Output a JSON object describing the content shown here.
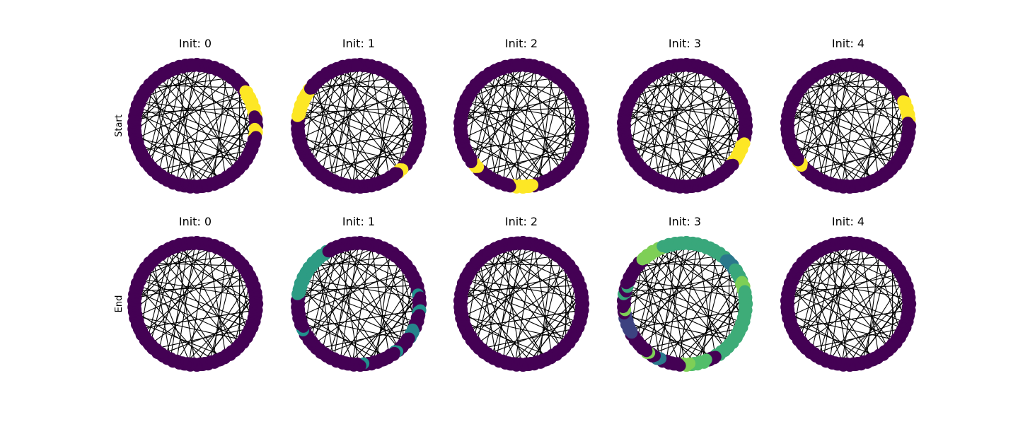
{
  "rows": [
    {
      "label": "Start",
      "panels": [
        {
          "title": "Init: 0",
          "segments": [
            {
              "from": 0.95,
              "to": 1.4,
              "value": 1
            },
            {
              "from": 1.6,
              "to": 1.75,
              "value": 1
            }
          ]
        },
        {
          "title": "Init: 1",
          "segments": [
            {
              "from": 4.85,
              "to": 5.35,
              "value": 1
            },
            {
              "from": 2.35,
              "to": 2.45,
              "value": 1
            }
          ]
        },
        {
          "title": "Init: 2",
          "segments": [
            {
              "from": 3.95,
              "to": 4.08,
              "value": 1
            },
            {
              "from": 2.95,
              "to": 3.3,
              "value": 1
            }
          ]
        },
        {
          "title": "Init: 3",
          "segments": [
            {
              "from": 1.85,
              "to": 2.25,
              "value": 1
            }
          ]
        },
        {
          "title": "Init: 4",
          "segments": [
            {
              "from": 4.0,
              "to": 4.1,
              "value": 1
            },
            {
              "from": 1.15,
              "to": 1.5,
              "value": 1
            }
          ]
        }
      ]
    },
    {
      "label": "End",
      "panels": [
        {
          "title": "Init: 0",
          "segments": []
        },
        {
          "title": "Init: 1",
          "segments": [
            {
              "from": 4.85,
              "to": 5.75,
              "value": 0.55
            },
            {
              "from": 4.25,
              "to": 4.3,
              "value": 0.5
            },
            {
              "from": 3.05,
              "to": 3.1,
              "value": 0.5
            },
            {
              "from": 2.0,
              "to": 2.15,
              "value": 0.45
            },
            {
              "from": 1.65,
              "to": 1.75,
              "value": 0.5
            },
            {
              "from": 1.4,
              "to": 1.45,
              "value": 0.5
            },
            {
              "from": 2.45,
              "to": 2.5,
              "value": 0.5
            }
          ]
        },
        {
          "title": "Init: 2",
          "segments": []
        },
        {
          "title": "Init: 3",
          "segments": [
            {
              "from": 4.2,
              "to": 4.55,
              "value": 0.2
            },
            {
              "from": 5.5,
              "to": 5.9,
              "value": 0.8
            },
            {
              "from": 5.9,
              "to": 6.283,
              "value": 0.6
            },
            {
              "from": 0,
              "to": 0.75,
              "value": 0.6
            },
            {
              "from": 0.75,
              "to": 0.95,
              "value": 0.4
            },
            {
              "from": 0.95,
              "to": 1.2,
              "value": 0.6
            },
            {
              "from": 1.2,
              "to": 1.35,
              "value": 0.8
            },
            {
              "from": 1.35,
              "to": 2.6,
              "value": 0.62
            },
            {
              "from": 2.75,
              "to": 3.05,
              "value": 0.7
            },
            {
              "from": 3.05,
              "to": 3.2,
              "value": 0.8
            },
            {
              "from": 3.55,
              "to": 3.65,
              "value": 0.4
            },
            {
              "from": 3.75,
              "to": 3.8,
              "value": 0.8
            },
            {
              "from": 4.6,
              "to": 4.65,
              "value": 0.8
            },
            {
              "from": 4.85,
              "to": 4.9,
              "value": 0.6
            },
            {
              "from": 5.0,
              "to": 5.05,
              "value": 0.6
            }
          ]
        },
        {
          "title": "Init: 4",
          "segments": []
        }
      ]
    }
  ],
  "colors": {
    "node_low": "#440154",
    "node_mid_purple": "#3b528b",
    "node_teal": "#21918c",
    "node_green": "#5ec962",
    "node_high": "#fde725",
    "edge": "#000000",
    "background": "#ffffff"
  },
  "graph": {
    "node_count": 60,
    "edges": [
      [
        0,
        33
      ],
      [
        2,
        31
      ],
      [
        3,
        44
      ],
      [
        5,
        27
      ],
      [
        6,
        40
      ],
      [
        8,
        22
      ],
      [
        9,
        52
      ],
      [
        10,
        38
      ],
      [
        12,
        47
      ],
      [
        14,
        29
      ],
      [
        15,
        55
      ],
      [
        17,
        36
      ],
      [
        18,
        49
      ],
      [
        20,
        4
      ],
      [
        21,
        43
      ],
      [
        23,
        58
      ],
      [
        24,
        11
      ],
      [
        26,
        51
      ],
      [
        28,
        7
      ],
      [
        30,
        57
      ],
      [
        32,
        13
      ],
      [
        34,
        53
      ],
      [
        35,
        1
      ],
      [
        37,
        19
      ],
      [
        39,
        56
      ],
      [
        41,
        16
      ],
      [
        42,
        25
      ],
      [
        45,
        59
      ],
      [
        46,
        10
      ],
      [
        48,
        28
      ],
      [
        50,
        3
      ],
      [
        54,
        23
      ],
      [
        56,
        12
      ],
      [
        58,
        36
      ],
      [
        1,
        45
      ],
      [
        7,
        18
      ],
      [
        13,
        29
      ],
      [
        16,
        41
      ],
      [
        19,
        48
      ],
      [
        22,
        55
      ],
      [
        25,
        2
      ],
      [
        27,
        44
      ],
      [
        31,
        52
      ],
      [
        33,
        8
      ],
      [
        38,
        57
      ],
      [
        40,
        53
      ],
      [
        43,
        9
      ],
      [
        47,
        21
      ],
      [
        49,
        14
      ],
      [
        51,
        6
      ],
      [
        53,
        26
      ],
      [
        57,
        17
      ],
      [
        59,
        34
      ],
      [
        4,
        39
      ],
      [
        11,
        30
      ]
    ]
  }
}
